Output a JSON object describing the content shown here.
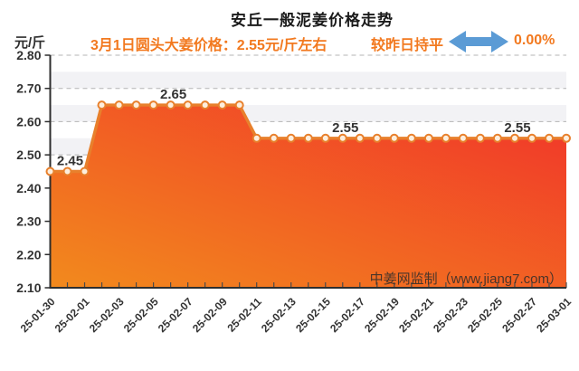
{
  "header": {
    "title": "安丘一般泥姜价格走势",
    "unit_label": "元/斤",
    "subtitle": "3月1日圆头大姜价格：2.55元/斤左右",
    "change_label": "较昨日持平",
    "change_pct": "0.00%",
    "accent_orange": "#f2791f",
    "arrow_blue": "#5b9bd5"
  },
  "watermark": "中姜网监制（www.jiang7.com）",
  "chart_data": {
    "type": "area",
    "title": "安丘一般泥姜价格走势",
    "ylabel": "元/斤",
    "ylim": [
      2.1,
      2.8
    ],
    "y_tick_step": 0.1,
    "y_ticks": [
      "2.80",
      "2.70",
      "2.60",
      "2.50",
      "2.40",
      "2.30",
      "2.20",
      "2.10"
    ],
    "grid": "dashed-horizontal",
    "split_bands": true,
    "x": [
      "25-01-30",
      "25-01-31",
      "25-02-01",
      "25-02-02",
      "25-02-03",
      "25-02-04",
      "25-02-05",
      "25-02-06",
      "25-02-07",
      "25-02-08",
      "25-02-09",
      "25-02-10",
      "25-02-11",
      "25-02-12",
      "25-02-13",
      "25-02-14",
      "25-02-15",
      "25-02-16",
      "25-02-17",
      "25-02-18",
      "25-02-19",
      "25-02-20",
      "25-02-21",
      "25-02-22",
      "25-02-23",
      "25-02-24",
      "25-02-25",
      "25-02-26",
      "25-02-27",
      "25-02-28",
      "25-03-01"
    ],
    "x_label_every": 2,
    "values": [
      2.45,
      2.45,
      2.45,
      2.65,
      2.65,
      2.65,
      2.65,
      2.65,
      2.65,
      2.65,
      2.65,
      2.65,
      2.55,
      2.55,
      2.55,
      2.55,
      2.55,
      2.55,
      2.55,
      2.55,
      2.55,
      2.55,
      2.55,
      2.55,
      2.55,
      2.55,
      2.55,
      2.55,
      2.55,
      2.55,
      2.55
    ],
    "point_labels": [
      {
        "index": 1,
        "text": "2.45"
      },
      {
        "index": 7,
        "text": "2.65"
      },
      {
        "index": 17,
        "text": "2.55"
      },
      {
        "index": 27,
        "text": "2.55"
      }
    ],
    "colors": {
      "line": "#e8802c",
      "marker_fill": "#fdeedd",
      "area_gradient_bottom_left": "#f28a1d",
      "area_gradient_top_right": "#f1342a",
      "gridline": "#b5b5b5",
      "band_light": "#ffffff",
      "band_dark": "#f2f2f5",
      "axis": "#2e2e2e",
      "tick_label": "#333333",
      "point_label": "#333333"
    }
  }
}
